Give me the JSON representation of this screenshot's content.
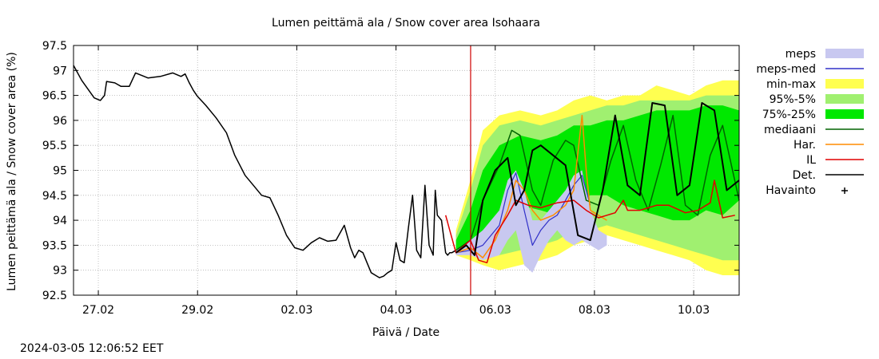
{
  "chart_data": {
    "type": "line",
    "title": "Lumen peittämä ala / Snow cover area Isohaara",
    "xlabel": "Päivä / Date",
    "ylabel": "Lumen peittämä ala / Snow cover area (%)",
    "xlim": [
      "2024-02-26T12:00",
      "2024-03-10T22:00"
    ],
    "ylim": [
      92.5,
      97.5
    ],
    "yticks": [
      92.5,
      93,
      93.5,
      94,
      94.5,
      95,
      95.5,
      96,
      96.5,
      97,
      97.5
    ],
    "ytick_labels": [
      "92.5",
      "93",
      "93.5",
      "94",
      "94.5",
      "95",
      "95.5",
      "96",
      "96.5",
      "97",
      "97.5"
    ],
    "xticks": [
      "2024-02-27",
      "2024-02-29",
      "2024-03-02",
      "2024-03-04",
      "2024-03-06",
      "2024-03-08",
      "2024-03-10"
    ],
    "xtick_labels": [
      "27.02",
      "29.02",
      "02.03",
      "04.03",
      "06.03",
      "08.03",
      "10.03"
    ],
    "grid": true,
    "legend_position": "right",
    "forecast_start": "2024-03-05T12:06",
    "legend": [
      {
        "key": "meps",
        "label": "meps",
        "style": "band",
        "color": "#c8c8f0"
      },
      {
        "key": "meps_med",
        "label": "meps-med",
        "style": "line",
        "color": "#3030c8"
      },
      {
        "key": "minmax",
        "label": "min-max",
        "style": "band",
        "color": "#ffff50"
      },
      {
        "key": "p95_5",
        "label": "95%-5%",
        "style": "band",
        "color": "#a0f070"
      },
      {
        "key": "p75_25",
        "label": "75%-25%",
        "style": "band",
        "color": "#00e800"
      },
      {
        "key": "mediaani",
        "label": "mediaani",
        "style": "line",
        "color": "#006400"
      },
      {
        "key": "har",
        "label": "Har.",
        "style": "line",
        "color": "#ff8c00"
      },
      {
        "key": "il",
        "label": "IL",
        "style": "line",
        "color": "#e00000"
      },
      {
        "key": "det",
        "label": "Det.",
        "style": "line",
        "color": "#000000"
      },
      {
        "key": "havainto",
        "label": "Havainto",
        "style": "marker",
        "color": "#000000"
      }
    ],
    "series": [
      {
        "key": "det_history",
        "style": "line",
        "color": "#000000",
        "width": 1.5,
        "x": [
          "2024-02-26T12:00",
          "2024-02-26T16:00",
          "2024-02-26T22:00",
          "2024-02-27T01:00",
          "2024-02-27T03:00",
          "2024-02-27T04:00",
          "2024-02-27T08:00",
          "2024-02-27T11:00",
          "2024-02-27T15:00",
          "2024-02-27T18:00",
          "2024-02-27T21:00",
          "2024-02-28T00:00",
          "2024-02-28T06:00",
          "2024-02-28T12:00",
          "2024-02-28T16:00",
          "2024-02-28T18:00",
          "2024-02-28T20:00",
          "2024-02-28T22:00",
          "2024-02-29T00:00",
          "2024-02-29T04:00",
          "2024-02-29T09:00",
          "2024-02-29T14:00",
          "2024-02-29T18:00",
          "2024-02-29T23:00",
          "2024-03-01T03:00",
          "2024-03-01T07:00",
          "2024-03-01T11:00",
          "2024-03-01T15:00",
          "2024-03-01T19:00",
          "2024-03-01T23:00",
          "2024-03-02T03:00",
          "2024-03-02T07:00",
          "2024-03-02T11:00",
          "2024-03-02T15:00",
          "2024-03-02T19:00",
          "2024-03-02T23:00",
          "2024-03-03T02:00",
          "2024-03-03T04:00",
          "2024-03-03T06:00",
          "2024-03-03T08:00",
          "2024-03-03T10:00",
          "2024-03-03T12:00",
          "2024-03-03T14:00",
          "2024-03-03T16:00",
          "2024-03-03T18:00",
          "2024-03-03T20:00",
          "2024-03-03T22:00",
          "2024-03-04T00:00",
          "2024-03-04T02:00",
          "2024-03-04T04:00",
          "2024-03-04T06:00",
          "2024-03-04T08:00",
          "2024-03-04T10:00",
          "2024-03-04T12:00",
          "2024-03-04T14:00",
          "2024-03-04T16:00",
          "2024-03-04T18:00",
          "2024-03-04T19:00",
          "2024-03-04T20:00",
          "2024-03-04T22:00",
          "2024-03-05T00:00",
          "2024-03-05T01:00",
          "2024-03-05T02:00",
          "2024-03-05T03:00",
          "2024-03-05T05:00"
        ],
        "y": [
          97.1,
          96.8,
          96.45,
          96.4,
          96.5,
          96.78,
          96.75,
          96.68,
          96.68,
          96.95,
          96.9,
          96.85,
          96.88,
          96.95,
          96.88,
          96.93,
          96.75,
          96.6,
          96.48,
          96.3,
          96.05,
          95.75,
          95.3,
          94.9,
          94.7,
          94.5,
          94.45,
          94.1,
          93.7,
          93.45,
          93.4,
          93.55,
          93.65,
          93.58,
          93.6,
          93.9,
          93.45,
          93.25,
          93.4,
          93.35,
          93.15,
          92.95,
          92.9,
          92.85,
          92.88,
          92.95,
          93.0,
          93.55,
          93.2,
          93.15,
          93.85,
          94.5,
          93.4,
          93.25,
          94.7,
          93.5,
          93.3,
          94.6,
          94.1,
          94.0,
          93.35,
          93.3,
          93.35,
          93.35,
          93.4
        ]
      },
      {
        "key": "minmax_band",
        "style": "band",
        "color": "#ffff50",
        "x": [
          "2024-03-05T05:00",
          "2024-03-05T12:00",
          "2024-03-05T18:00",
          "2024-03-06T02:00",
          "2024-03-06T12:00",
          "2024-03-06T22:00",
          "2024-03-07T06:00",
          "2024-03-07T14:00",
          "2024-03-07T22:00",
          "2024-03-08T06:00",
          "2024-03-08T14:00",
          "2024-03-08T22:00",
          "2024-03-09T06:00",
          "2024-03-09T14:00",
          "2024-03-09T22:00",
          "2024-03-10T06:00",
          "2024-03-10T14:00",
          "2024-03-10T22:00"
        ],
        "low": [
          93.3,
          93.2,
          93.1,
          93.0,
          93.1,
          93.2,
          93.3,
          93.5,
          93.6,
          93.7,
          93.6,
          93.5,
          93.4,
          93.3,
          93.2,
          93.0,
          92.9,
          92.9
        ],
        "high": [
          93.8,
          94.8,
          95.8,
          96.1,
          96.2,
          96.1,
          96.2,
          96.4,
          96.5,
          96.4,
          96.5,
          96.5,
          96.7,
          96.6,
          96.5,
          96.7,
          96.8,
          96.8
        ]
      },
      {
        "key": "p95_5_band",
        "style": "band",
        "color": "#a0f070",
        "x": [
          "2024-03-05T05:00",
          "2024-03-05T12:00",
          "2024-03-05T18:00",
          "2024-03-06T02:00",
          "2024-03-06T12:00",
          "2024-03-06T22:00",
          "2024-03-07T06:00",
          "2024-03-07T14:00",
          "2024-03-07T22:00",
          "2024-03-08T06:00",
          "2024-03-08T14:00",
          "2024-03-08T22:00",
          "2024-03-09T06:00",
          "2024-03-09T14:00",
          "2024-03-09T22:00",
          "2024-03-10T06:00",
          "2024-03-10T14:00",
          "2024-03-10T22:00"
        ],
        "low": [
          93.35,
          93.3,
          93.25,
          93.3,
          93.4,
          93.5,
          93.6,
          93.8,
          93.8,
          93.9,
          93.8,
          93.7,
          93.6,
          93.5,
          93.4,
          93.3,
          93.2,
          93.2
        ],
        "high": [
          93.7,
          94.6,
          95.5,
          95.9,
          96.0,
          95.9,
          96.0,
          96.1,
          96.2,
          96.3,
          96.3,
          96.4,
          96.4,
          96.4,
          96.4,
          96.5,
          96.5,
          96.5
        ]
      },
      {
        "key": "p75_25_band",
        "style": "band",
        "color": "#00e800",
        "x": [
          "2024-03-05T05:00",
          "2024-03-05T12:00",
          "2024-03-05T18:00",
          "2024-03-06T02:00",
          "2024-03-06T12:00",
          "2024-03-06T22:00",
          "2024-03-07T06:00",
          "2024-03-07T14:00",
          "2024-03-07T22:00",
          "2024-03-08T06:00",
          "2024-03-08T14:00",
          "2024-03-08T22:00",
          "2024-03-09T06:00",
          "2024-03-09T14:00",
          "2024-03-09T22:00",
          "2024-03-10T06:00",
          "2024-03-10T14:00",
          "2024-03-10T22:00"
        ],
        "low": [
          93.4,
          93.5,
          93.6,
          94.0,
          94.3,
          94.2,
          94.1,
          94.3,
          94.5,
          94.5,
          94.3,
          94.2,
          94.1,
          94.0,
          94.0,
          94.2,
          94.1,
          94.4
        ],
        "high": [
          93.6,
          94.2,
          95.0,
          95.5,
          95.7,
          95.6,
          95.7,
          95.9,
          95.9,
          96.0,
          96.0,
          96.1,
          96.2,
          96.2,
          96.2,
          96.3,
          96.3,
          96.2
        ]
      },
      {
        "key": "meps_band",
        "style": "band",
        "color": "#c8c8f0",
        "x": [
          "2024-03-05T05:00",
          "2024-03-05T12:00",
          "2024-03-05T18:00",
          "2024-03-06T02:00",
          "2024-03-06T06:00",
          "2024-03-06T10:00",
          "2024-03-06T14:00",
          "2024-03-06T18:00",
          "2024-03-06T22:00",
          "2024-03-07T02:00",
          "2024-03-07T06:00",
          "2024-03-07T10:00",
          "2024-03-07T14:00",
          "2024-03-07T18:00",
          "2024-03-07T22:00",
          "2024-03-08T02:00",
          "2024-03-08T06:00"
        ],
        "low": [
          93.3,
          93.3,
          93.2,
          93.3,
          93.6,
          93.8,
          93.1,
          92.95,
          93.3,
          93.6,
          93.8,
          93.6,
          93.5,
          93.6,
          93.5,
          93.4,
          93.5
        ],
        "high": [
          93.4,
          93.6,
          93.8,
          94.2,
          94.8,
          95.0,
          94.6,
          94.0,
          94.0,
          94.2,
          94.4,
          94.6,
          94.9,
          95.0,
          94.2,
          93.8,
          93.7
        ]
      },
      {
        "key": "meps_med",
        "style": "line",
        "color": "#3030c8",
        "width": 1.2,
        "x": [
          "2024-03-05T05:00",
          "2024-03-05T12:00",
          "2024-03-05T18:00",
          "2024-03-06T02:00",
          "2024-03-06T06:00",
          "2024-03-06T10:00",
          "2024-03-06T14:00",
          "2024-03-06T18:00",
          "2024-03-06T22:00",
          "2024-03-07T02:00",
          "2024-03-07T06:00",
          "2024-03-07T10:00",
          "2024-03-07T14:00",
          "2024-03-07T18:00",
          "2024-03-07T22:00"
        ],
        "y": [
          93.35,
          93.4,
          93.5,
          93.9,
          94.6,
          94.95,
          94.2,
          93.5,
          93.8,
          94.0,
          94.1,
          94.4,
          94.7,
          94.9,
          94.3
        ]
      },
      {
        "key": "mediaani",
        "style": "line",
        "color": "#006400",
        "width": 1.5,
        "x": [
          "2024-03-05T05:00",
          "2024-03-05T12:00",
          "2024-03-05T18:00",
          "2024-03-06T02:00",
          "2024-03-06T08:00",
          "2024-03-06T12:00",
          "2024-03-06T18:00",
          "2024-03-06T22:00",
          "2024-03-07T04:00",
          "2024-03-07T10:00",
          "2024-03-07T14:00",
          "2024-03-07T20:00",
          "2024-03-08T02:00",
          "2024-03-08T08:00",
          "2024-03-08T14:00",
          "2024-03-08T20:00",
          "2024-03-09T02:00",
          "2024-03-09T08:00",
          "2024-03-09T14:00",
          "2024-03-09T20:00",
          "2024-03-10T02:00",
          "2024-03-10T08:00",
          "2024-03-10T14:00",
          "2024-03-10T22:00"
        ],
        "y": [
          93.4,
          93.6,
          94.4,
          95.1,
          95.8,
          95.7,
          94.6,
          94.3,
          95.2,
          95.6,
          95.5,
          94.4,
          94.3,
          95.2,
          95.9,
          94.8,
          94.2,
          95.1,
          96.1,
          94.3,
          94.1,
          95.3,
          95.9,
          94.4
        ]
      },
      {
        "key": "har",
        "style": "line",
        "color": "#ff8c00",
        "width": 1.5,
        "x": [
          "2024-03-05T05:00",
          "2024-03-05T12:00",
          "2024-03-05T18:00",
          "2024-03-06T00:00",
          "2024-03-06T06:00",
          "2024-03-06T10:00",
          "2024-03-06T14:00",
          "2024-03-06T18:00",
          "2024-03-06T22:00",
          "2024-03-07T04:00",
          "2024-03-07T10:00",
          "2024-03-07T14:00",
          "2024-03-07T18:00",
          "2024-03-07T20:00",
          "2024-03-07T22:00",
          "2024-03-08T02:00",
          "2024-03-08T06:00"
        ],
        "y": [
          93.35,
          93.45,
          93.25,
          93.6,
          94.2,
          94.8,
          94.6,
          94.2,
          94.0,
          94.1,
          94.3,
          94.6,
          96.1,
          95.0,
          94.2,
          94.1,
          94.0
        ]
      },
      {
        "key": "il",
        "style": "line",
        "color": "#e00000",
        "width": 1.5,
        "x": [
          "2024-03-05T00:00",
          "2024-03-05T02:00",
          "2024-03-05T05:00",
          "2024-03-05T12:00",
          "2024-03-05T16:00",
          "2024-03-05T20:00",
          "2024-03-06T00:00",
          "2024-03-06T06:00",
          "2024-03-06T10:00",
          "2024-03-06T16:00",
          "2024-03-06T22:00",
          "2024-03-07T06:00",
          "2024-03-07T14:00",
          "2024-03-07T20:00",
          "2024-03-08T02:00",
          "2024-03-08T10:00",
          "2024-03-08T14:00",
          "2024-03-08T16:00",
          "2024-03-08T22:00",
          "2024-03-09T06:00",
          "2024-03-09T12:00",
          "2024-03-09T20:00",
          "2024-03-10T02:00",
          "2024-03-10T08:00",
          "2024-03-10T10:00",
          "2024-03-10T14:00",
          "2024-03-10T20:00"
        ],
        "y": [
          94.1,
          93.8,
          93.35,
          93.6,
          93.2,
          93.15,
          93.7,
          94.1,
          94.4,
          94.3,
          94.25,
          94.35,
          94.4,
          94.2,
          94.05,
          94.15,
          94.4,
          94.2,
          94.2,
          94.3,
          94.3,
          94.15,
          94.2,
          94.35,
          94.8,
          94.05,
          94.1
        ]
      },
      {
        "key": "det_forecast",
        "style": "line",
        "color": "#000000",
        "width": 2,
        "x": [
          "2024-03-05T05:00",
          "2024-03-05T10:00",
          "2024-03-05T14:00",
          "2024-03-05T18:00",
          "2024-03-06T00:00",
          "2024-03-06T06:00",
          "2024-03-06T10:00",
          "2024-03-06T14:00",
          "2024-03-06T18:00",
          "2024-03-06T22:00",
          "2024-03-07T04:00",
          "2024-03-07T10:00",
          "2024-03-07T16:00",
          "2024-03-07T22:00",
          "2024-03-08T04:00",
          "2024-03-08T10:00",
          "2024-03-08T16:00",
          "2024-03-08T22:00",
          "2024-03-09T04:00",
          "2024-03-09T10:00",
          "2024-03-09T16:00",
          "2024-03-09T22:00",
          "2024-03-10T04:00",
          "2024-03-10T10:00",
          "2024-03-10T16:00",
          "2024-03-10T22:00"
        ],
        "y": [
          93.35,
          93.5,
          93.3,
          94.4,
          95.0,
          95.25,
          94.3,
          94.6,
          95.4,
          95.5,
          95.3,
          95.1,
          93.7,
          93.6,
          94.6,
          96.1,
          94.7,
          94.5,
          96.35,
          96.3,
          94.5,
          94.7,
          96.35,
          96.2,
          94.6,
          94.8
        ]
      }
    ]
  },
  "footer": {
    "timestamp": "2024-03-05 12:06:52 EET"
  }
}
